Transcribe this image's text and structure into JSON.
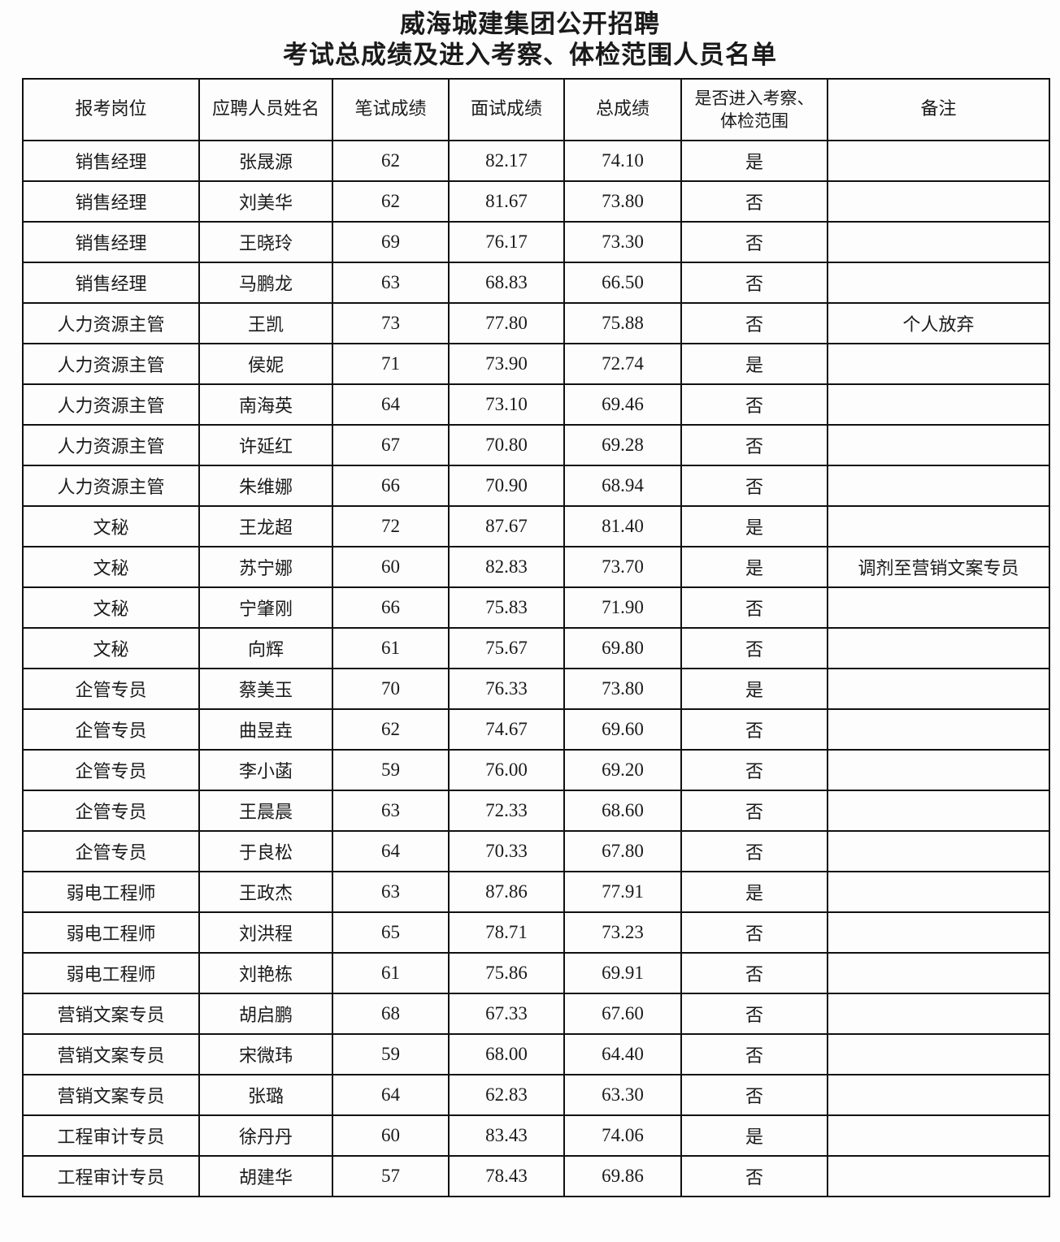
{
  "document": {
    "title_line1": "威海城建集团公开招聘",
    "title_line2": "考试总成绩及进入考察、体检范围人员名单"
  },
  "table": {
    "headers": [
      "报考岗位",
      "应聘人员姓名",
      "笔试成绩",
      "面试成绩",
      "总成绩",
      "是否进入考察、体检范围",
      "备注"
    ],
    "rows": [
      [
        "销售经理",
        "张晟源",
        "62",
        "82.17",
        "74.10",
        "是",
        ""
      ],
      [
        "销售经理",
        "刘美华",
        "62",
        "81.67",
        "73.80",
        "否",
        ""
      ],
      [
        "销售经理",
        "王晓玲",
        "69",
        "76.17",
        "73.30",
        "否",
        ""
      ],
      [
        "销售经理",
        "马鹏龙",
        "63",
        "68.83",
        "66.50",
        "否",
        ""
      ],
      [
        "人力资源主管",
        "王凯",
        "73",
        "77.80",
        "75.88",
        "否",
        "个人放弃"
      ],
      [
        "人力资源主管",
        "侯妮",
        "71",
        "73.90",
        "72.74",
        "是",
        ""
      ],
      [
        "人力资源主管",
        "南海英",
        "64",
        "73.10",
        "69.46",
        "否",
        ""
      ],
      [
        "人力资源主管",
        "许延红",
        "67",
        "70.80",
        "69.28",
        "否",
        ""
      ],
      [
        "人力资源主管",
        "朱维娜",
        "66",
        "70.90",
        "68.94",
        "否",
        ""
      ],
      [
        "文秘",
        "王龙超",
        "72",
        "87.67",
        "81.40",
        "是",
        ""
      ],
      [
        "文秘",
        "苏宁娜",
        "60",
        "82.83",
        "73.70",
        "是",
        "调剂至营销文案专员"
      ],
      [
        "文秘",
        "宁肇刚",
        "66",
        "75.83",
        "71.90",
        "否",
        ""
      ],
      [
        "文秘",
        "向辉",
        "61",
        "75.67",
        "69.80",
        "否",
        ""
      ],
      [
        "企管专员",
        "蔡美玉",
        "70",
        "76.33",
        "73.80",
        "是",
        ""
      ],
      [
        "企管专员",
        "曲昱垚",
        "62",
        "74.67",
        "69.60",
        "否",
        ""
      ],
      [
        "企管专员",
        "李小菡",
        "59",
        "76.00",
        "69.20",
        "否",
        ""
      ],
      [
        "企管专员",
        "王晨晨",
        "63",
        "72.33",
        "68.60",
        "否",
        ""
      ],
      [
        "企管专员",
        "于良松",
        "64",
        "70.33",
        "67.80",
        "否",
        ""
      ],
      [
        "弱电工程师",
        "王政杰",
        "63",
        "87.86",
        "77.91",
        "是",
        ""
      ],
      [
        "弱电工程师",
        "刘洪程",
        "65",
        "78.71",
        "73.23",
        "否",
        ""
      ],
      [
        "弱电工程师",
        "刘艳栋",
        "61",
        "75.86",
        "69.91",
        "否",
        ""
      ],
      [
        "营销文案专员",
        "胡启鹏",
        "68",
        "67.33",
        "67.60",
        "否",
        ""
      ],
      [
        "营销文案专员",
        "宋微玮",
        "59",
        "68.00",
        "64.40",
        "否",
        ""
      ],
      [
        "营销文案专员",
        "张璐",
        "64",
        "62.83",
        "63.30",
        "否",
        ""
      ],
      [
        "工程审计专员",
        "徐丹丹",
        "60",
        "83.43",
        "74.06",
        "是",
        ""
      ],
      [
        "工程审计专员",
        "胡建华",
        "57",
        "78.43",
        "69.86",
        "否",
        ""
      ]
    ]
  }
}
